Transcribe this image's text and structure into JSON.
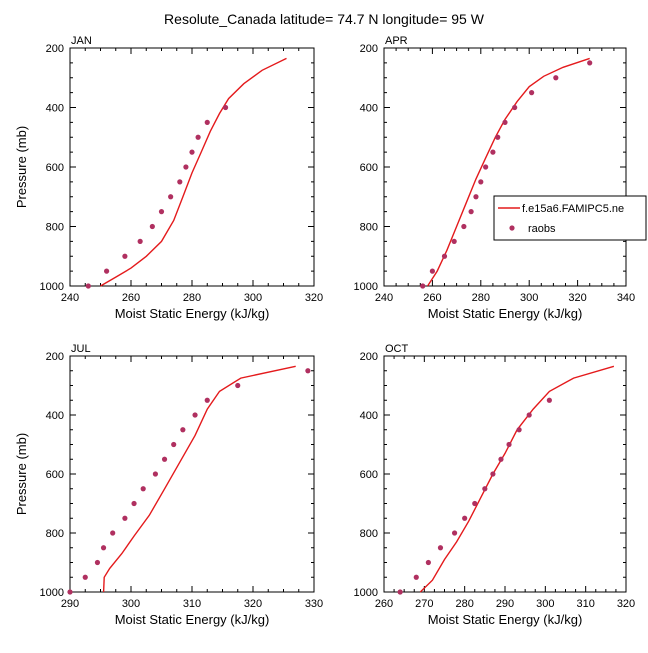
{
  "title": "Resolute_Canada  latitude= 74.7 N longitude= 95 W",
  "colors": {
    "model": "#e41a1c",
    "obs": "#b03060",
    "axis": "#000000"
  },
  "legend": {
    "entries": [
      {
        "label": "f.e15a6.FAMIPC5.ne",
        "style": "line",
        "color": "#e41a1c"
      },
      {
        "label": "raobs",
        "style": "marker",
        "color": "#b03060"
      }
    ]
  },
  "chart_data": [
    {
      "type": "line",
      "panel_label": "JAN",
      "xlabel": "Moist Static Energy (kJ/kg)",
      "ylabel": "Pressure (mb)",
      "xlim": [
        240,
        320
      ],
      "ylim": [
        1000,
        200
      ],
      "xticks": [
        240,
        260,
        280,
        300,
        320
      ],
      "yticks": [
        200,
        400,
        600,
        800,
        1000
      ],
      "series": [
        {
          "name": "f.e15a6.FAMIPC5.ne",
          "style": "line",
          "x": [
            250,
            255,
            260,
            265,
            270,
            274,
            277,
            280,
            283,
            286,
            289,
            292,
            297,
            303,
            311
          ],
          "y": [
            1000,
            970,
            940,
            900,
            850,
            780,
            700,
            620,
            550,
            480,
            420,
            370,
            320,
            275,
            235
          ]
        },
        {
          "name": "raobs",
          "style": "marker",
          "x": [
            246,
            252,
            258,
            263,
            267,
            270,
            273,
            276,
            278,
            280,
            282,
            285,
            291
          ],
          "y": [
            1000,
            950,
            900,
            850,
            800,
            750,
            700,
            650,
            600,
            550,
            500,
            450,
            400
          ]
        }
      ]
    },
    {
      "type": "line",
      "panel_label": "APR",
      "xlabel": "Moist Static Energy (kJ/kg)",
      "ylabel": "",
      "xlim": [
        240,
        340
      ],
      "ylim": [
        1000,
        200
      ],
      "xticks": [
        240,
        260,
        280,
        300,
        320,
        340
      ],
      "yticks": [
        200,
        400,
        600,
        800,
        1000
      ],
      "series": [
        {
          "name": "f.e15a6.FAMIPC5.ne",
          "style": "line",
          "x": [
            258,
            262,
            266,
            270,
            274,
            278,
            282,
            286,
            290,
            295,
            300,
            306,
            314,
            325
          ],
          "y": [
            1000,
            950,
            880,
            800,
            720,
            640,
            570,
            500,
            440,
            380,
            330,
            295,
            265,
            235
          ]
        },
        {
          "name": "raobs",
          "style": "marker",
          "x": [
            256,
            260,
            265,
            269,
            273,
            276,
            278,
            280,
            282,
            285,
            287,
            290,
            294,
            301,
            311,
            325
          ],
          "y": [
            1000,
            950,
            900,
            850,
            800,
            750,
            700,
            650,
            600,
            550,
            500,
            450,
            400,
            350,
            300,
            250
          ]
        }
      ]
    },
    {
      "type": "line",
      "panel_label": "JUL",
      "xlabel": "Moist Static Energy (kJ/kg)",
      "ylabel": "Pressure (mb)",
      "xlim": [
        290,
        330
      ],
      "ylim": [
        1000,
        200
      ],
      "xticks": [
        290,
        300,
        310,
        320,
        330
      ],
      "yticks": [
        200,
        400,
        600,
        800,
        1000
      ],
      "series": [
        {
          "name": "f.e15a6.FAMIPC5.ne",
          "style": "line",
          "x": [
            295.5,
            295.6,
            296.5,
            298.5,
            300.5,
            303,
            305.5,
            308,
            310.5,
            312.5,
            314.5,
            318,
            327
          ],
          "y": [
            1000,
            950,
            920,
            870,
            810,
            740,
            650,
            560,
            470,
            380,
            320,
            275,
            235
          ]
        },
        {
          "name": "raobs",
          "style": "marker",
          "x": [
            290,
            292.5,
            294.5,
            295.5,
            297,
            299,
            300.5,
            302,
            304,
            305.5,
            307,
            308.5,
            310.5,
            312.5,
            317.5,
            329
          ],
          "y": [
            1000,
            950,
            900,
            850,
            800,
            750,
            700,
            650,
            600,
            550,
            500,
            450,
            400,
            350,
            300,
            250
          ]
        }
      ]
    },
    {
      "type": "line",
      "panel_label": "OCT",
      "xlabel": "Moist Static Energy (kJ/kg)",
      "ylabel": "",
      "xlim": [
        260,
        320
      ],
      "ylim": [
        1000,
        200
      ],
      "xticks": [
        260,
        270,
        280,
        290,
        300,
        310,
        320
      ],
      "yticks": [
        200,
        400,
        600,
        800,
        1000
      ],
      "series": [
        {
          "name": "f.e15a6.FAMIPC5.ne",
          "style": "line",
          "x": [
            269,
            272,
            275,
            278,
            281,
            284,
            287,
            290,
            293,
            297,
            301,
            307,
            317
          ],
          "y": [
            1000,
            960,
            890,
            830,
            760,
            680,
            600,
            530,
            450,
            380,
            320,
            275,
            235
          ]
        },
        {
          "name": "raobs",
          "style": "marker",
          "x": [
            264,
            268,
            271,
            274,
            277.5,
            280,
            282.5,
            285,
            287,
            289,
            291,
            293.5,
            296,
            301
          ],
          "y": [
            1000,
            950,
            900,
            850,
            800,
            750,
            700,
            650,
            600,
            550,
            500,
            450,
            400,
            350
          ]
        }
      ]
    }
  ]
}
